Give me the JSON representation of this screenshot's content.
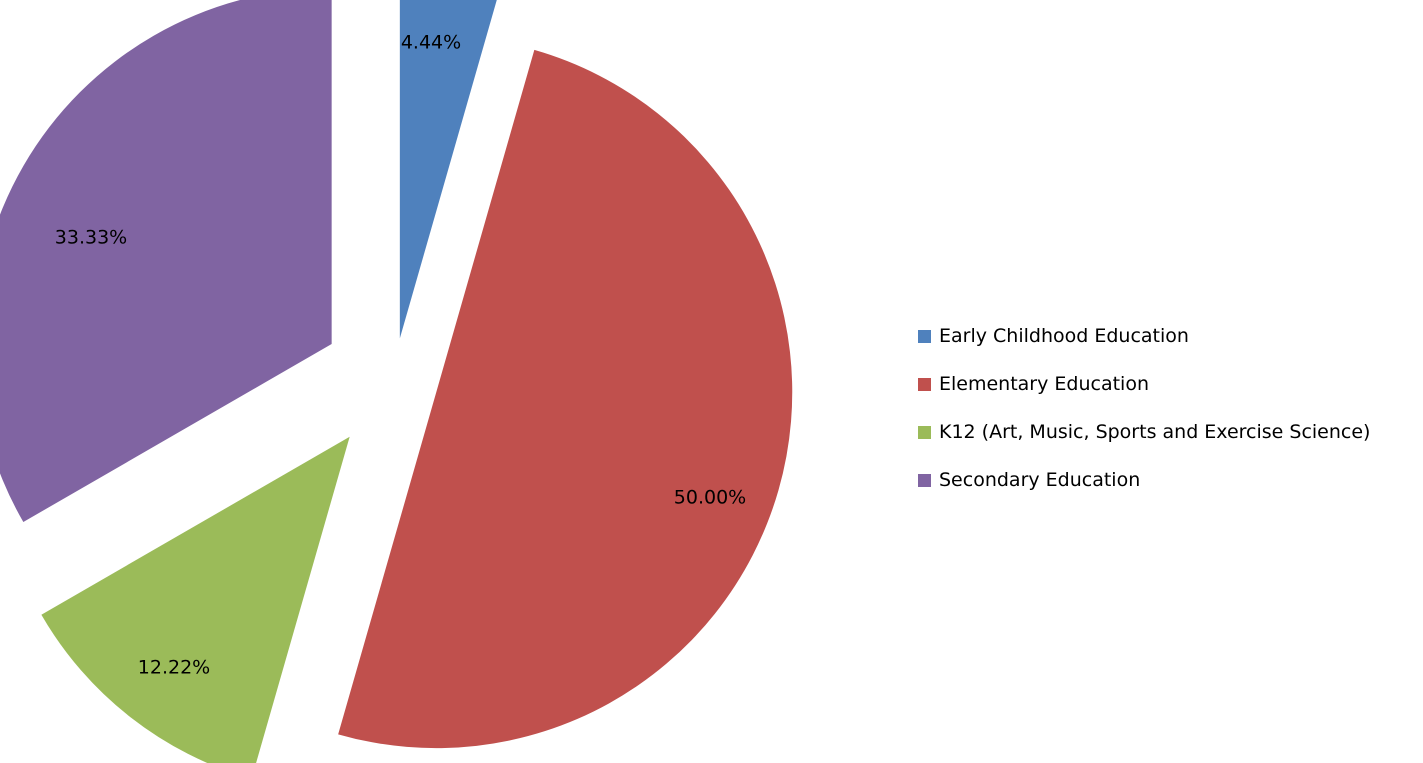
{
  "chart_data": {
    "type": "pie",
    "categories": [
      "Early Childhood Education",
      "Elementary Education",
      "K12 (Art, Music, Sports and Exercise Science)",
      "Secondary Education"
    ],
    "values": [
      4.44,
      50.0,
      12.22,
      33.33
    ],
    "data_labels": [
      "4.44%",
      "50.00%",
      "12.22%",
      "33.33%"
    ],
    "colors": [
      "#4F81BD",
      "#C0504D",
      "#9BBB59",
      "#8064A2"
    ],
    "exploded": true,
    "start_angle": "12 o'clock, clockwise",
    "legend_position": "right"
  }
}
